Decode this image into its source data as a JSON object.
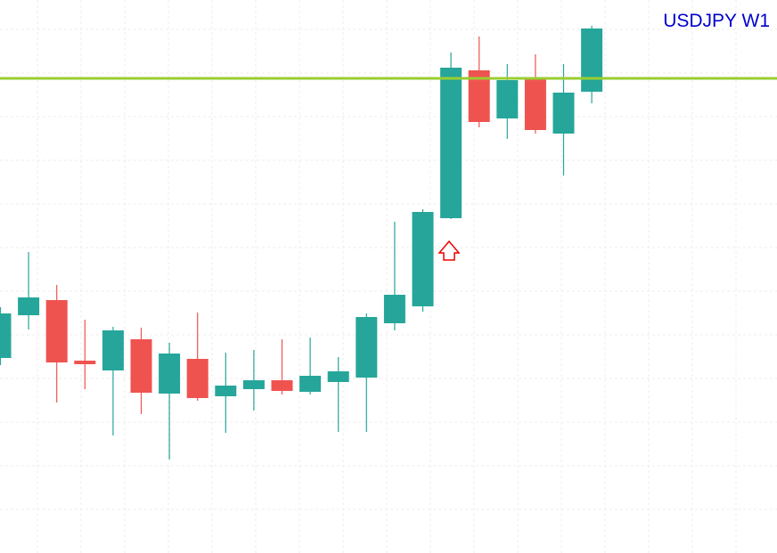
{
  "chart_data": {
    "type": "candlestick",
    "title": "USDJPY W1",
    "ylim": [
      0,
      621
    ],
    "grid": true,
    "up_color": "#26a69a",
    "down_color": "#ef5350",
    "series": [
      {
        "name": null,
        "open": [
          219,
          267,
          284,
          216,
          205,
          240,
          179,
          218,
          176,
          184,
          194,
          181,
          192,
          197,
          258,
          277,
          376,
          542,
          488,
          532,
          471,
          518
        ],
        "high": [
          276,
          338,
          301,
          262,
          254,
          253,
          236,
          270,
          225,
          228,
          240,
          242,
          220,
          269,
          372,
          386,
          562,
          580,
          549,
          560,
          549,
          592
        ],
        "low": [
          211,
          251,
          169,
          184,
          132,
          156,
          105,
          171,
          135,
          160,
          178,
          178,
          136,
          136,
          250,
          271,
          375,
          478,
          465,
          471,
          424,
          505
        ],
        "close": [
          269,
          287,
          214,
          212,
          250,
          180,
          224,
          174,
          188,
          194,
          182,
          199,
          204,
          265,
          290,
          383,
          545,
          484,
          531,
          475,
          517,
          589
        ]
      }
    ],
    "hline": {
      "value": 533,
      "color": "#9acd32"
    }
  }
}
